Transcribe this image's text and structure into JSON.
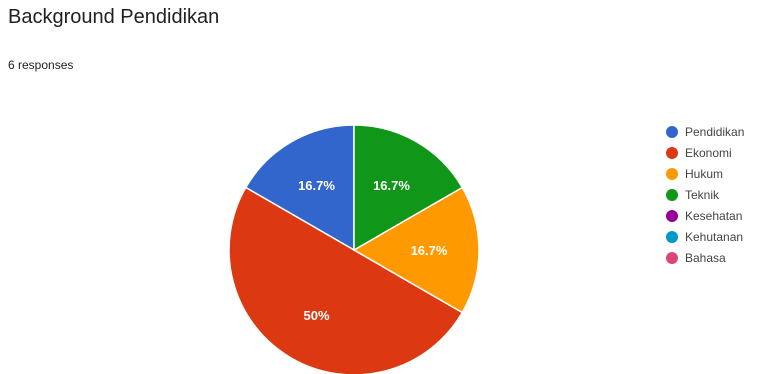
{
  "title": "Background Pendidikan",
  "subtitle": "6 responses",
  "chart_data": {
    "type": "pie",
    "title": "Background Pendidikan",
    "subtitle": "6 responses",
    "legend_position": "right",
    "start_angle_deg": 90,
    "direction": "counterclockwise",
    "categories": [
      "Pendidikan",
      "Ekonomi",
      "Hukum",
      "Teknik",
      "Kesehatan",
      "Kehutanan",
      "Bahasa"
    ],
    "values": [
      1,
      3,
      1,
      1,
      0,
      0,
      0
    ],
    "labels": [
      "16.7%",
      "50%",
      "16.7%",
      "16.7%",
      "",
      "",
      ""
    ],
    "colors": [
      "#3366cc",
      "#dc3912",
      "#ff9900",
      "#109618",
      "#990099",
      "#0099c6",
      "#dd4477"
    ]
  }
}
